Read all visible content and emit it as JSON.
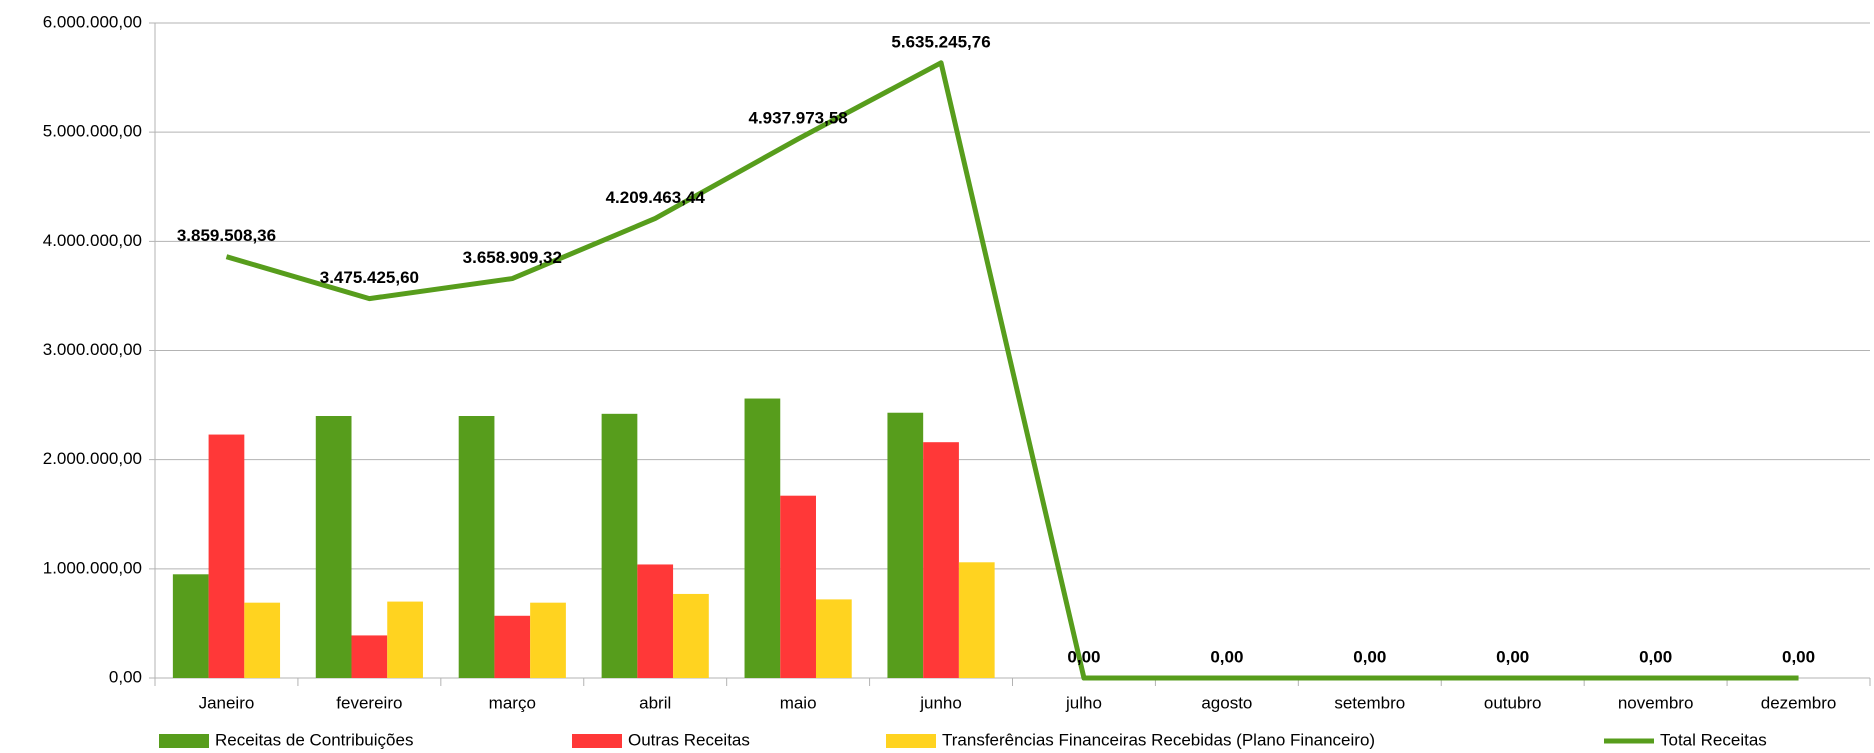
{
  "chart_data": {
    "type": "bar_line",
    "categories": [
      "Janeiro",
      "fevereiro",
      "março",
      "abril",
      "maio",
      "junho",
      "julho",
      "agosto",
      "setembro",
      "outubro",
      "novembro",
      "dezembro"
    ],
    "series": [
      {
        "name": "Receitas de Contribuições",
        "type": "bar",
        "color": "#579d1c",
        "values": [
          950000,
          2400000,
          2400000,
          2420000,
          2560000,
          2430000,
          0,
          0,
          0,
          0,
          0,
          0
        ]
      },
      {
        "name": "Outras Receitas",
        "type": "bar",
        "color": "#ff3838",
        "values": [
          2230000,
          390000,
          570000,
          1040000,
          1670000,
          2160000,
          0,
          0,
          0,
          0,
          0,
          0
        ]
      },
      {
        "name": "Transferências Financeiras Recebidas (Plano Financeiro)",
        "type": "bar",
        "color": "#ffd320",
        "values": [
          690000,
          700000,
          690000,
          770000,
          720000,
          1060000,
          0,
          0,
          0,
          0,
          0,
          0
        ]
      },
      {
        "name": "Total Receitas",
        "type": "line",
        "color": "#579d1c",
        "values": [
          3859508.36,
          3475425.6,
          3658909.32,
          4209463.44,
          4937973.58,
          5635245.76,
          0,
          0,
          0,
          0,
          0,
          0
        ],
        "value_labels": [
          "3.859.508,36",
          "3.475.425,60",
          "3.658.909,32",
          "4.209.463,44",
          "4.937.973,58",
          "5.635.245,76",
          "0,00",
          "0,00",
          "0,00",
          "0,00",
          "0,00",
          "0,00"
        ]
      }
    ],
    "ylim": [
      0,
      6000000
    ],
    "yticks": [
      {
        "value": 0,
        "label": "0,00"
      },
      {
        "value": 1000000,
        "label": "1.000.000,00"
      },
      {
        "value": 2000000,
        "label": "2.000.000,00"
      },
      {
        "value": 3000000,
        "label": "3.000.000,00"
      },
      {
        "value": 4000000,
        "label": "4.000.000,00"
      },
      {
        "value": 5000000,
        "label": "5.000.000,00"
      },
      {
        "value": 6000000,
        "label": "6.000.000,00"
      }
    ],
    "grid": true
  }
}
